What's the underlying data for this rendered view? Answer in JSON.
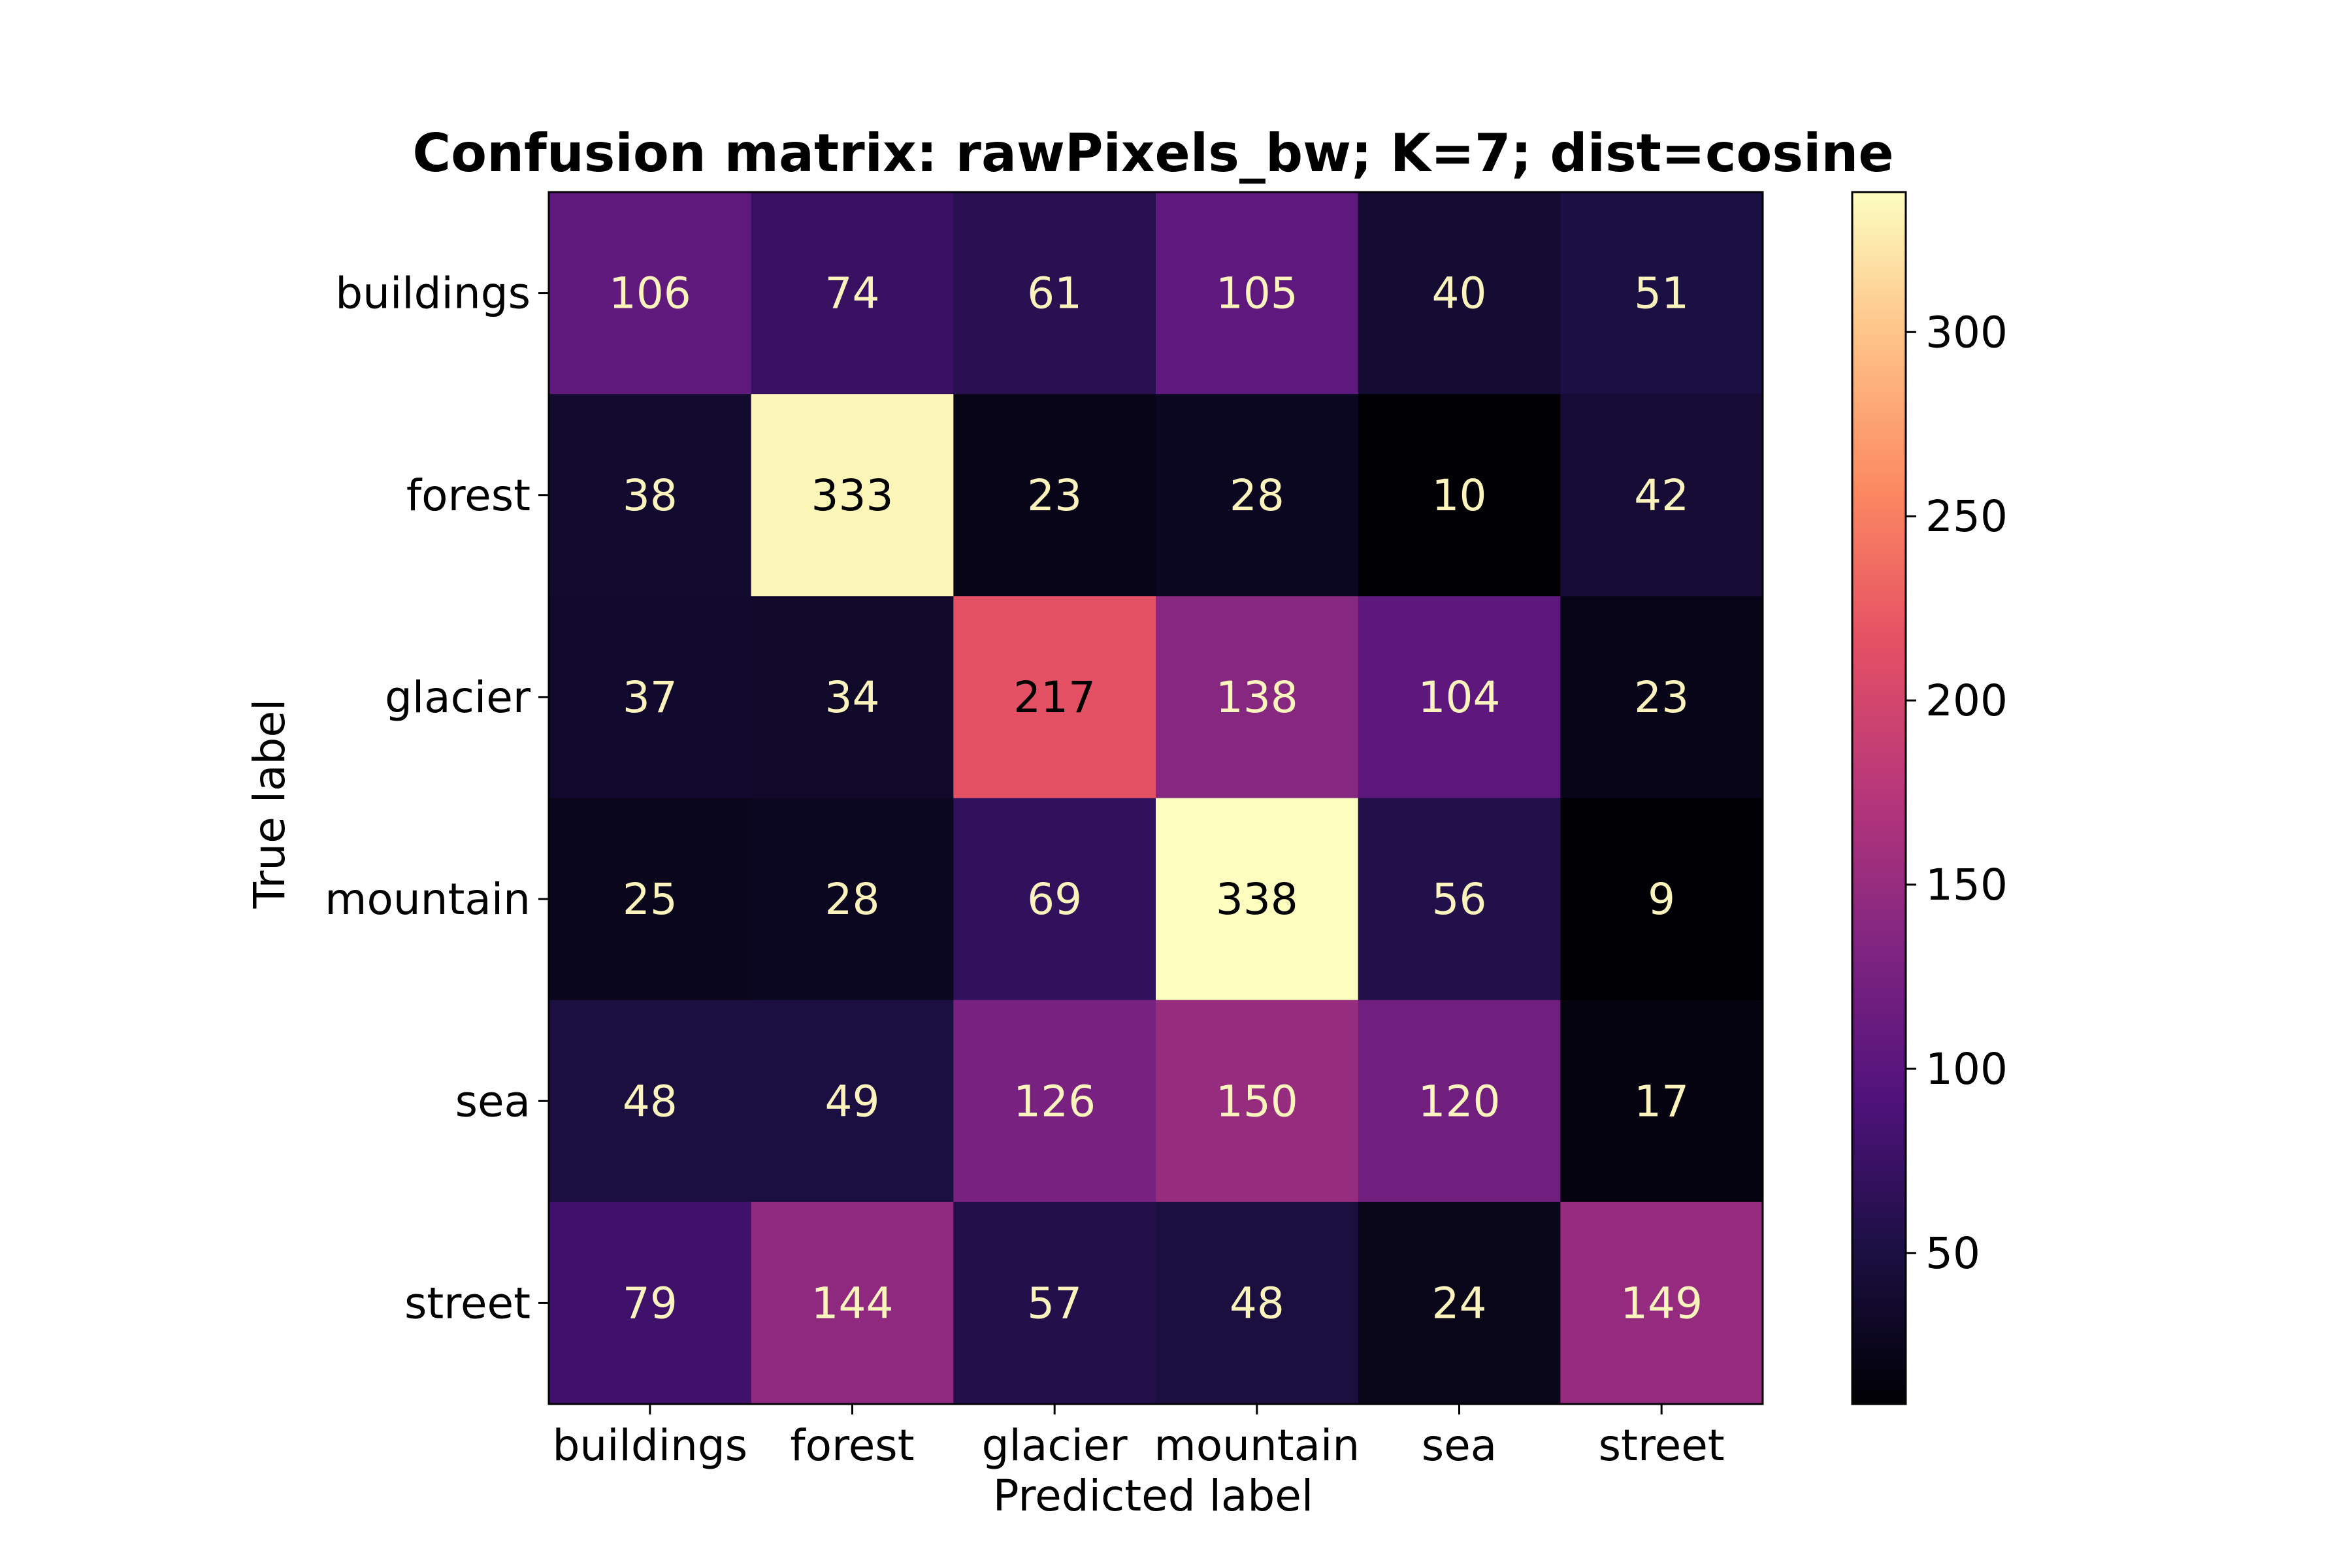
{
  "chart_data": {
    "type": "heatmap",
    "title": "Confusion matrix: rawPixels_bw; K=7; dist=cosine",
    "xlabel": "Predicted label",
    "ylabel": "True label",
    "x_categories": [
      "buildings",
      "forest",
      "glacier",
      "mountain",
      "sea",
      "street"
    ],
    "y_categories": [
      "buildings",
      "forest",
      "glacier",
      "mountain",
      "sea",
      "street"
    ],
    "matrix": [
      [
        106,
        74,
        61,
        105,
        40,
        51
      ],
      [
        38,
        333,
        23,
        28,
        10,
        42
      ],
      [
        37,
        34,
        217,
        138,
        104,
        23
      ],
      [
        25,
        28,
        69,
        338,
        56,
        9
      ],
      [
        48,
        49,
        126,
        150,
        120,
        17
      ],
      [
        79,
        144,
        57,
        48,
        24,
        149
      ]
    ],
    "colormap": "magma",
    "colorbar": {
      "range": [
        9,
        338
      ],
      "ticks": [
        50,
        100,
        150,
        200,
        250,
        300
      ]
    },
    "cell_text_colors": {
      "on_dark": "#fcf3bd",
      "on_light": "#000000"
    },
    "grid": false
  }
}
